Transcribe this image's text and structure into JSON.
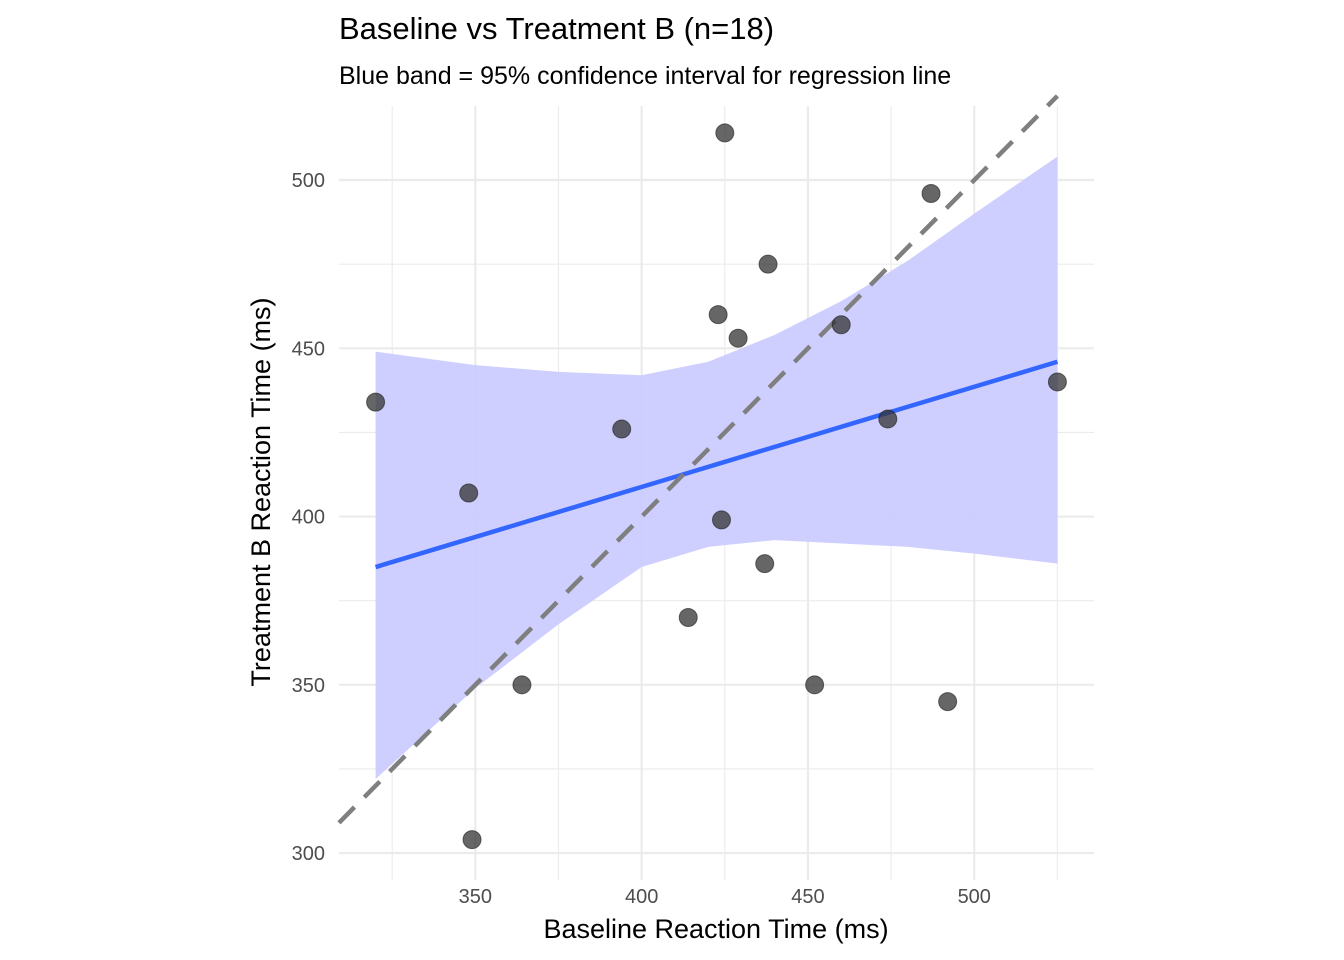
{
  "chart_data": {
    "type": "scatter",
    "title": "Baseline vs Treatment B (n=18)",
    "subtitle": "Blue band = 95% confidence interval for regression line",
    "xlabel": "Baseline Reaction Time (ms)",
    "ylabel": "Treatment B Reaction Time (ms)",
    "xlim": [
      309,
      536
    ],
    "ylim": [
      292,
      522
    ],
    "x_ticks": [
      350,
      400,
      450,
      500
    ],
    "y_ticks": [
      300,
      350,
      400,
      450,
      500
    ],
    "grid": true,
    "points": [
      {
        "x": 320,
        "y": 434
      },
      {
        "x": 348,
        "y": 407
      },
      {
        "x": 349,
        "y": 304
      },
      {
        "x": 364,
        "y": 350
      },
      {
        "x": 394,
        "y": 426
      },
      {
        "x": 414,
        "y": 370
      },
      {
        "x": 423,
        "y": 460
      },
      {
        "x": 424,
        "y": 399
      },
      {
        "x": 425,
        "y": 514
      },
      {
        "x": 429,
        "y": 453
      },
      {
        "x": 437,
        "y": 386
      },
      {
        "x": 438,
        "y": 475
      },
      {
        "x": 452,
        "y": 350
      },
      {
        "x": 460,
        "y": 457
      },
      {
        "x": 474,
        "y": 429
      },
      {
        "x": 487,
        "y": 496
      },
      {
        "x": 492,
        "y": 345
      },
      {
        "x": 525,
        "y": 440
      }
    ],
    "regression_line": {
      "x": [
        320,
        525
      ],
      "y": [
        385,
        446
      ]
    },
    "confidence_band": {
      "x": [
        320,
        350,
        375,
        400,
        420,
        440,
        460,
        480,
        500,
        525
      ],
      "lower": [
        322,
        349,
        368,
        385,
        391,
        393,
        392,
        391,
        389,
        386
      ],
      "upper": [
        449,
        445,
        443,
        442,
        446,
        454,
        464,
        476,
        490,
        507
      ]
    },
    "identity_line": {
      "x": [
        309,
        525
      ],
      "y": [
        309,
        525
      ]
    },
    "colors": {
      "points": "#333333",
      "regression": "#3366ff",
      "band": "#ccccff",
      "identity": "#7f7f7f",
      "grid": "#ebebeb",
      "tick_text": "#4d4d4d"
    }
  }
}
